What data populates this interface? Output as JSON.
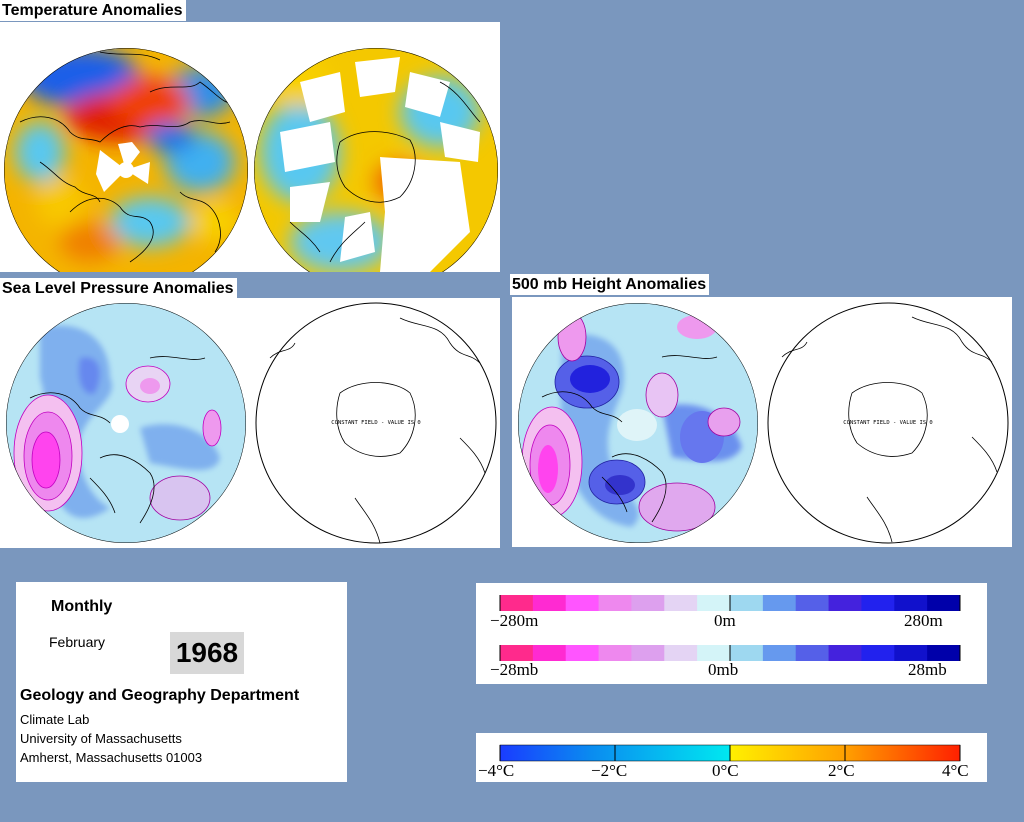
{
  "sections": {
    "temperature_title": "Temperature Anomalies",
    "slp_title": "Sea Level Pressure Anomalies",
    "height_title": "500 mb Height Anomalies"
  },
  "map_notes": {
    "slp_constant": "CONSTANT FIELD - VALUE IS 0",
    "height_constant": "CONSTANT FIELD - VALUE IS 0"
  },
  "info": {
    "period": "Monthly",
    "month": "February",
    "year": "1968",
    "department": "Geology and Geography Department",
    "lab": "Climate Lab",
    "university": "University of Massachusetts",
    "address": "Amherst, Massachusetts 01003"
  },
  "legends": {
    "height": {
      "min": "−280m",
      "mid": "0m",
      "max": "280m",
      "colors": [
        "#ff2a8c",
        "#ff2ad2",
        "#ff55ff",
        "#ee88ee",
        "#dda0ee",
        "#e4d4f4",
        "#d4f4f8",
        "#9ed8f0",
        "#6699ee",
        "#5560e8",
        "#4422dd",
        "#2222ee",
        "#1111cc",
        "#0000aa"
      ]
    },
    "pressure": {
      "min": "−28mb",
      "mid": "0mb",
      "max": "28mb",
      "colors": [
        "#ff2a8c",
        "#ff2ad2",
        "#ff55ff",
        "#ee88ee",
        "#dda0ee",
        "#e4d4f4",
        "#d4f4f8",
        "#9ed8f0",
        "#6699ee",
        "#5560e8",
        "#4422dd",
        "#2222ee",
        "#1111cc",
        "#0000aa"
      ]
    },
    "temperature": {
      "labels": [
        "−4°C",
        "−2°C",
        "0°C",
        "2°C",
        "4°C"
      ],
      "stops": [
        "#1a3cff",
        "#0a8cf0",
        "#00e8f0",
        "#fff000",
        "#ffa000",
        "#ff2000"
      ]
    }
  }
}
